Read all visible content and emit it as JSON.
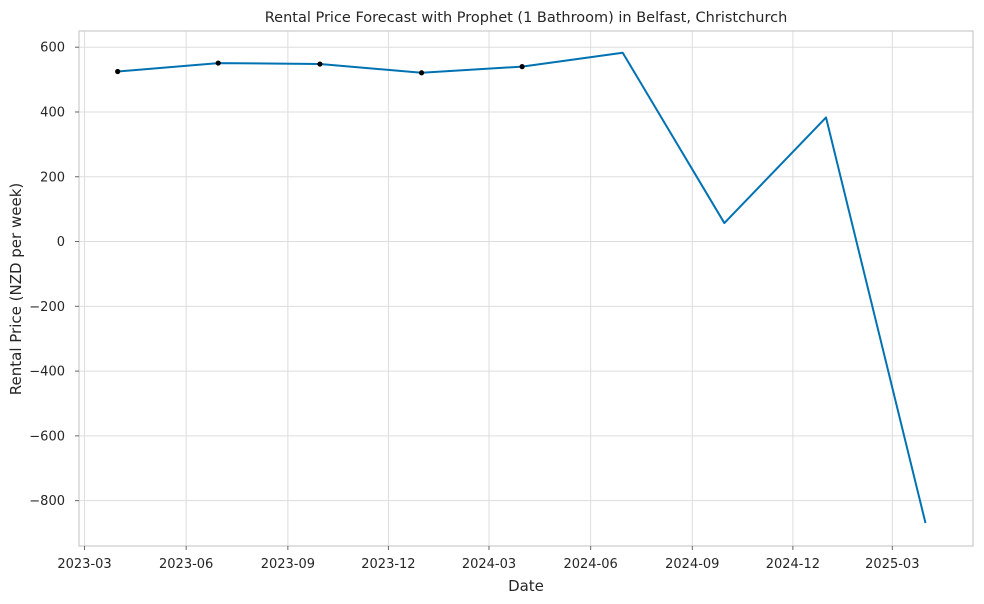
{
  "chart_data": {
    "type": "line",
    "title": "Rental Price Forecast with Prophet (1 Bathroom) in Belfast, Christchurch",
    "xlabel": "Date",
    "ylabel": "Rental Price (NZD per week)",
    "xlim": [
      "2023-02-24",
      "2025-05-13"
    ],
    "ylim": [
      -940,
      650
    ],
    "x_ticks": [
      "2023-03-01",
      "2023-06-01",
      "2023-09-01",
      "2023-12-01",
      "2024-03-01",
      "2024-06-01",
      "2024-09-01",
      "2024-12-01",
      "2025-03-01"
    ],
    "x_tick_labels": [
      "2023-03",
      "2023-06",
      "2023-09",
      "2023-12",
      "2024-03",
      "2024-06",
      "2024-09",
      "2024-12",
      "2025-03"
    ],
    "y_ticks": [
      600,
      400,
      200,
      0,
      -200,
      -400,
      -600,
      -800
    ],
    "y_tick_labels": [
      "600",
      "400",
      "200",
      "0",
      "−200",
      "−400",
      "−600",
      "−800"
    ],
    "grid": true,
    "series": [
      {
        "kind": "forecast-line",
        "color": "#0072B2",
        "points": [
          {
            "x": "2023-03-31",
            "y": 525
          },
          {
            "x": "2023-06-30",
            "y": 551
          },
          {
            "x": "2023-09-30",
            "y": 548
          },
          {
            "x": "2023-12-31",
            "y": 521
          },
          {
            "x": "2024-03-31",
            "y": 540
          },
          {
            "x": "2024-06-30",
            "y": 583
          },
          {
            "x": "2024-09-30",
            "y": 57
          },
          {
            "x": "2024-12-31",
            "y": 383
          },
          {
            "x": "2025-03-31",
            "y": -869
          }
        ]
      },
      {
        "kind": "observed-points",
        "color": "#000000",
        "points": [
          {
            "x": "2023-03-31",
            "y": 525
          },
          {
            "x": "2023-06-30",
            "y": 551
          },
          {
            "x": "2023-09-30",
            "y": 548
          },
          {
            "x": "2023-12-31",
            "y": 521
          },
          {
            "x": "2024-03-31",
            "y": 540
          }
        ]
      }
    ]
  }
}
